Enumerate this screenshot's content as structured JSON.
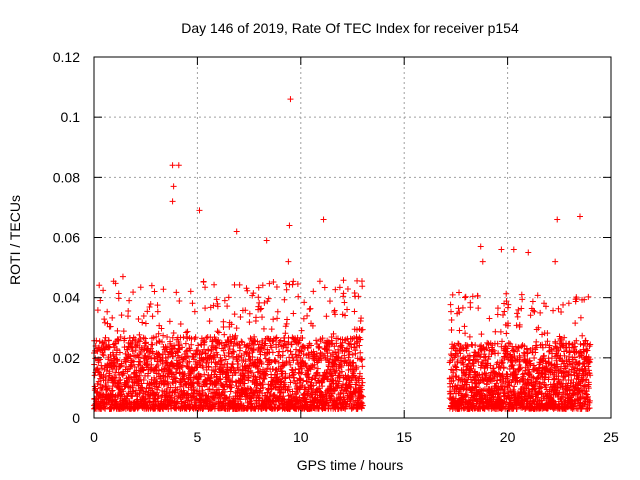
{
  "chart_data": {
    "type": "scatter",
    "title": "Day 146 of 2019, Rate Of TEC Index for receiver p154",
    "xlabel": "GPS time / hours",
    "ylabel": "ROTI / TECUs",
    "xlim": [
      0,
      25
    ],
    "ylim": [
      0,
      0.12
    ],
    "xticks": [
      0,
      5,
      10,
      15,
      20,
      25
    ],
    "yticks": [
      0,
      0.02,
      0.04,
      0.06,
      0.08,
      0.1,
      0.12
    ],
    "xtick_labels": [
      "0",
      "5",
      "10",
      "15",
      "20",
      "25"
    ],
    "ytick_labels": [
      "0",
      "0.02",
      "0.04",
      "0.06",
      "0.08",
      "0.1",
      "0.12"
    ],
    "grid": true,
    "marker": "+",
    "series_color": "#ff0000",
    "notable_points": [
      {
        "x": 9.5,
        "y": 0.106
      },
      {
        "x": 3.8,
        "y": 0.084
      },
      {
        "x": 4.1,
        "y": 0.084
      },
      {
        "x": 3.85,
        "y": 0.077
      },
      {
        "x": 3.8,
        "y": 0.072
      },
      {
        "x": 5.1,
        "y": 0.069
      },
      {
        "x": 11.1,
        "y": 0.066
      },
      {
        "x": 23.5,
        "y": 0.067
      },
      {
        "x": 22.4,
        "y": 0.066
      },
      {
        "x": 9.45,
        "y": 0.064
      },
      {
        "x": 6.9,
        "y": 0.062
      },
      {
        "x": 8.35,
        "y": 0.059
      },
      {
        "x": 18.7,
        "y": 0.057
      },
      {
        "x": 19.7,
        "y": 0.056
      },
      {
        "x": 20.3,
        "y": 0.056
      },
      {
        "x": 21.0,
        "y": 0.055
      },
      {
        "x": 1.4,
        "y": 0.047
      },
      {
        "x": 22.3,
        "y": 0.052
      },
      {
        "x": 18.8,
        "y": 0.052
      },
      {
        "x": 9.4,
        "y": 0.052
      }
    ],
    "density_segments": [
      {
        "x_start": 0.0,
        "x_end": 13.0,
        "base_min": 0.003,
        "base_max": 0.027,
        "peak_max": 0.046
      },
      {
        "x_start": 17.2,
        "x_end": 24.0,
        "base_min": 0.003,
        "base_max": 0.025,
        "peak_max": 0.042
      }
    ],
    "data_gap": [
      13.0,
      17.2
    ]
  }
}
